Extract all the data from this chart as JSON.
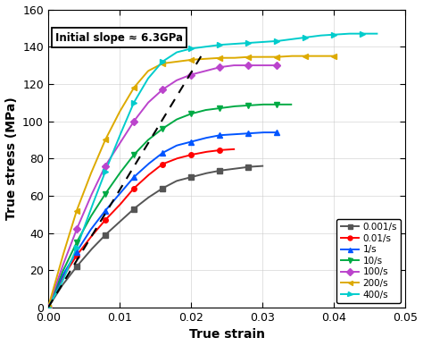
{
  "title": "",
  "xlabel": "True strain",
  "ylabel": "True stress (MPa)",
  "xlim": [
    0.0,
    0.05
  ],
  "ylim": [
    0,
    160
  ],
  "xticks": [
    0.0,
    0.01,
    0.02,
    0.03,
    0.04,
    0.05
  ],
  "yticks": [
    0,
    20,
    40,
    60,
    80,
    100,
    120,
    140,
    160
  ],
  "annotation": "Initial slope ≈ 6.3GPa",
  "dashed_line": {
    "x": [
      0.0,
      0.0215
    ],
    "y": [
      0.0,
      135.5
    ]
  },
  "series": [
    {
      "label": "0.001/s",
      "color": "#555555",
      "marker": "s",
      "x": [
        0.0,
        0.002,
        0.004,
        0.006,
        0.008,
        0.01,
        0.012,
        0.014,
        0.016,
        0.018,
        0.02,
        0.022,
        0.024,
        0.026,
        0.028,
        0.03
      ],
      "y": [
        0,
        12,
        22,
        31,
        39,
        46,
        53,
        59,
        64,
        68,
        70,
        72,
        73.5,
        74.5,
        75.5,
        76
      ]
    },
    {
      "label": "0.01/s",
      "color": "#ff0000",
      "marker": "o",
      "x": [
        0.0,
        0.002,
        0.004,
        0.006,
        0.008,
        0.01,
        0.012,
        0.014,
        0.016,
        0.018,
        0.02,
        0.022,
        0.024,
        0.026
      ],
      "y": [
        0,
        16,
        28,
        38,
        47,
        55,
        64,
        71,
        77,
        80,
        82,
        83.5,
        84.5,
        85
      ]
    },
    {
      "label": "1/s",
      "color": "#0055ff",
      "marker": "^",
      "x": [
        0.0,
        0.002,
        0.004,
        0.006,
        0.008,
        0.01,
        0.012,
        0.014,
        0.016,
        0.018,
        0.02,
        0.022,
        0.024,
        0.026,
        0.028,
        0.03,
        0.032
      ],
      "y": [
        0,
        17,
        30,
        42,
        52,
        61,
        70,
        77,
        83,
        87,
        89,
        91,
        92.5,
        93,
        93.5,
        94,
        94
      ]
    },
    {
      "label": "10/s",
      "color": "#00aa44",
      "marker": "v",
      "x": [
        0.0,
        0.002,
        0.004,
        0.006,
        0.008,
        0.01,
        0.012,
        0.014,
        0.016,
        0.018,
        0.02,
        0.022,
        0.024,
        0.026,
        0.028,
        0.03,
        0.032,
        0.034
      ],
      "y": [
        0,
        19,
        35,
        49,
        61,
        72,
        82,
        90,
        96,
        101,
        104,
        106,
        107,
        108,
        108.5,
        109,
        109,
        109
      ]
    },
    {
      "label": "100/s",
      "color": "#bb44cc",
      "marker": "D",
      "x": [
        0.0,
        0.002,
        0.004,
        0.006,
        0.008,
        0.01,
        0.012,
        0.014,
        0.016,
        0.018,
        0.02,
        0.022,
        0.024,
        0.026,
        0.028,
        0.03,
        0.032
      ],
      "y": [
        0,
        22,
        42,
        60,
        76,
        88,
        100,
        110,
        117,
        122,
        125,
        127,
        129,
        130,
        130,
        130,
        130
      ]
    },
    {
      "label": "200/s",
      "color": "#ddaa00",
      "marker": "<",
      "x": [
        0.0,
        0.002,
        0.004,
        0.006,
        0.008,
        0.01,
        0.012,
        0.014,
        0.016,
        0.018,
        0.02,
        0.022,
        0.024,
        0.026,
        0.028,
        0.03,
        0.032,
        0.034,
        0.036,
        0.038,
        0.04
      ],
      "y": [
        0,
        27,
        52,
        72,
        90,
        105,
        118,
        127,
        131,
        132,
        133,
        133.5,
        134,
        134,
        134.5,
        134.5,
        134.5,
        135,
        135,
        135,
        135
      ]
    },
    {
      "label": "400/s",
      "color": "#00cccc",
      "marker": ">",
      "x": [
        0.0,
        0.002,
        0.004,
        0.006,
        0.008,
        0.01,
        0.012,
        0.014,
        0.016,
        0.018,
        0.02,
        0.022,
        0.024,
        0.026,
        0.028,
        0.03,
        0.032,
        0.034,
        0.036,
        0.038,
        0.04,
        0.042,
        0.044,
        0.046
      ],
      "y": [
        0,
        14,
        32,
        53,
        73,
        92,
        110,
        123,
        132,
        137,
        139,
        140,
        141,
        141.5,
        142,
        142.5,
        143,
        144,
        145,
        146,
        146.5,
        147,
        147,
        147
      ]
    }
  ]
}
